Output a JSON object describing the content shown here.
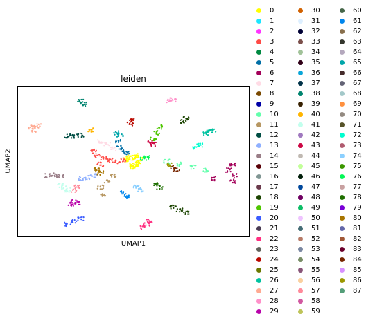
{
  "chart_data": {
    "type": "scatter",
    "title": "leiden",
    "xlabel": "UMAP1",
    "ylabel": "UMAP2",
    "grid": false,
    "ticks": false,
    "legend_placement": "right-outside",
    "legend": [
      {
        "label": "0",
        "color": "#ffff00"
      },
      {
        "label": "1",
        "color": "#1ce6ff"
      },
      {
        "label": "2",
        "color": "#ff34ff"
      },
      {
        "label": "3",
        "color": "#ff4a46"
      },
      {
        "label": "4",
        "color": "#008941"
      },
      {
        "label": "5",
        "color": "#006fa6"
      },
      {
        "label": "6",
        "color": "#a30059"
      },
      {
        "label": "7",
        "color": "#ffdbe5"
      },
      {
        "label": "8",
        "color": "#7a4900"
      },
      {
        "label": "9",
        "color": "#0000a6"
      },
      {
        "label": "10",
        "color": "#63ffac"
      },
      {
        "label": "11",
        "color": "#b79762"
      },
      {
        "label": "12",
        "color": "#004d43"
      },
      {
        "label": "13",
        "color": "#8fb0ff"
      },
      {
        "label": "14",
        "color": "#997d87"
      },
      {
        "label": "15",
        "color": "#5a0007"
      },
      {
        "label": "16",
        "color": "#809693"
      },
      {
        "label": "17",
        "color": "#6a3a4c"
      },
      {
        "label": "18",
        "color": "#1b4400"
      },
      {
        "label": "19",
        "color": "#4fc601"
      },
      {
        "label": "20",
        "color": "#3b5dff"
      },
      {
        "label": "21",
        "color": "#4a3b53"
      },
      {
        "label": "22",
        "color": "#ff2f80"
      },
      {
        "label": "23",
        "color": "#61615a"
      },
      {
        "label": "24",
        "color": "#ba0900"
      },
      {
        "label": "25",
        "color": "#6b7900"
      },
      {
        "label": "26",
        "color": "#00c2a0"
      },
      {
        "label": "27",
        "color": "#ffaa92"
      },
      {
        "label": "28",
        "color": "#ff90c9"
      },
      {
        "label": "29",
        "color": "#b903aa"
      },
      {
        "label": "30",
        "color": "#d16100"
      },
      {
        "label": "31",
        "color": "#ddefff"
      },
      {
        "label": "32",
        "color": "#000035"
      },
      {
        "label": "33",
        "color": "#7b4f4b"
      },
      {
        "label": "34",
        "color": "#a1c299"
      },
      {
        "label": "35",
        "color": "#300018"
      },
      {
        "label": "36",
        "color": "#0aa6d8"
      },
      {
        "label": "37",
        "color": "#013349"
      },
      {
        "label": "38",
        "color": "#00846f"
      },
      {
        "label": "39",
        "color": "#372101"
      },
      {
        "label": "40",
        "color": "#ffb500"
      },
      {
        "label": "41",
        "color": "#c2ffed"
      },
      {
        "label": "42",
        "color": "#a079bf"
      },
      {
        "label": "43",
        "color": "#cc0744"
      },
      {
        "label": "44",
        "color": "#c0b9b2"
      },
      {
        "label": "45",
        "color": "#c2ff99"
      },
      {
        "label": "46",
        "color": "#001e09"
      },
      {
        "label": "47",
        "color": "#00489c"
      },
      {
        "label": "48",
        "color": "#6f0062"
      },
      {
        "label": "49",
        "color": "#0cbd66"
      },
      {
        "label": "50",
        "color": "#eec3ff"
      },
      {
        "label": "51",
        "color": "#456d75"
      },
      {
        "label": "52",
        "color": "#b77b68"
      },
      {
        "label": "53",
        "color": "#7a87a1"
      },
      {
        "label": "54",
        "color": "#788d66"
      },
      {
        "label": "55",
        "color": "#885578"
      },
      {
        "label": "56",
        "color": "#fad09f"
      },
      {
        "label": "57",
        "color": "#ff8a9a"
      },
      {
        "label": "58",
        "color": "#d157a0"
      },
      {
        "label": "59",
        "color": "#bec459"
      },
      {
        "label": "60",
        "color": "#456648"
      },
      {
        "label": "61",
        "color": "#0086ed"
      },
      {
        "label": "62",
        "color": "#886f4c"
      },
      {
        "label": "63",
        "color": "#34362d"
      },
      {
        "label": "64",
        "color": "#b4a8bd"
      },
      {
        "label": "65",
        "color": "#00a6aa"
      },
      {
        "label": "66",
        "color": "#452c2c"
      },
      {
        "label": "67",
        "color": "#636375"
      },
      {
        "label": "68",
        "color": "#a3c8c9"
      },
      {
        "label": "69",
        "color": "#ff913f"
      },
      {
        "label": "70",
        "color": "#938a81"
      },
      {
        "label": "71",
        "color": "#575329"
      },
      {
        "label": "72",
        "color": "#00fecf"
      },
      {
        "label": "73",
        "color": "#b05b6f"
      },
      {
        "label": "74",
        "color": "#8cd0ff"
      },
      {
        "label": "75",
        "color": "#3b9700"
      },
      {
        "label": "76",
        "color": "#04f757"
      },
      {
        "label": "77",
        "color": "#c8a1a1"
      },
      {
        "label": "78",
        "color": "#1e6e00"
      },
      {
        "label": "79",
        "color": "#7900d7"
      },
      {
        "label": "80",
        "color": "#a77500"
      },
      {
        "label": "81",
        "color": "#6367a9"
      },
      {
        "label": "82",
        "color": "#a05837"
      },
      {
        "label": "83",
        "color": "#6b002c"
      },
      {
        "label": "84",
        "color": "#772600"
      },
      {
        "label": "85",
        "color": "#d790ff"
      },
      {
        "label": "86",
        "color": "#9b9700"
      },
      {
        "label": "87",
        "color": "#549e79"
      }
    ],
    "series": [
      {
        "cluster": "0",
        "points": [
          [
            0.02,
            0.05
          ],
          [
            -0.05,
            0.08
          ],
          [
            0.08,
            -0.02
          ],
          [
            -0.03,
            -0.06
          ],
          [
            0.06,
            0.1
          ],
          [
            0.1,
            0.04
          ],
          [
            -0.08,
            0.0
          ],
          [
            0.0,
            -0.1
          ],
          [
            0.04,
            -0.05
          ],
          [
            -0.1,
            0.05
          ]
        ]
      },
      {
        "cluster": "3",
        "points": [
          [
            -0.55,
            0.1
          ],
          [
            -0.45,
            0.05
          ],
          [
            -0.35,
            0.02
          ],
          [
            -0.25,
            0.0
          ],
          [
            -0.15,
            0.03
          ],
          [
            -0.6,
            0.18
          ],
          [
            -0.5,
            -0.05
          ]
        ]
      },
      {
        "cluster": "5",
        "points": [
          [
            -0.2,
            0.25
          ],
          [
            -0.15,
            0.2
          ],
          [
            -0.1,
            0.15
          ],
          [
            -0.22,
            0.35
          ]
        ]
      },
      {
        "cluster": "6",
        "points": [
          [
            1.5,
            -0.05
          ],
          [
            1.45,
            -0.15
          ],
          [
            1.55,
            -0.25
          ],
          [
            1.5,
            -0.35
          ],
          [
            1.2,
            -0.3
          ]
        ]
      },
      {
        "cluster": "7",
        "points": [
          [
            -0.4,
            0.3
          ],
          [
            -0.3,
            0.22
          ],
          [
            -0.5,
            0.35
          ]
        ]
      },
      {
        "cluster": "10",
        "points": [
          [
            0.5,
            0.0
          ],
          [
            0.7,
            -0.05
          ],
          [
            0.9,
            -0.1
          ],
          [
            1.1,
            -0.15
          ]
        ]
      },
      {
        "cluster": "11",
        "points": [
          [
            -0.3,
            -0.25
          ],
          [
            -0.4,
            -0.35
          ],
          [
            -0.5,
            -0.45
          ],
          [
            -0.45,
            -0.6
          ]
        ]
      },
      {
        "cluster": "12",
        "points": [
          [
            -1.0,
            0.45
          ],
          [
            -0.9,
            0.44
          ],
          [
            -0.8,
            0.46
          ]
        ]
      },
      {
        "cluster": "13",
        "points": [
          [
            -0.8,
            -0.3
          ],
          [
            -0.7,
            -0.28
          ],
          [
            -0.6,
            -0.25
          ]
        ]
      },
      {
        "cluster": "14",
        "points": [
          [
            -1.3,
            -0.25
          ],
          [
            -1.2,
            -0.24
          ],
          [
            -1.1,
            -0.26
          ]
        ]
      },
      {
        "cluster": "18",
        "points": [
          [
            0.7,
            -0.85
          ],
          [
            0.8,
            -0.9
          ],
          [
            0.6,
            -0.8
          ],
          [
            0.75,
            0.7
          ],
          [
            0.8,
            0.75
          ]
        ]
      },
      {
        "cluster": "19",
        "points": [
          [
            0.35,
            0.5
          ],
          [
            0.4,
            0.6
          ],
          [
            0.3,
            0.4
          ]
        ]
      },
      {
        "cluster": "20",
        "points": [
          [
            -0.9,
            -1.05
          ],
          [
            -1.0,
            -1.1
          ],
          [
            -0.8,
            -1.0
          ]
        ]
      },
      {
        "cluster": "22",
        "points": [
          [
            0.2,
            -1.1
          ],
          [
            0.15,
            -1.15
          ],
          [
            0.25,
            -1.05
          ]
        ]
      },
      {
        "cluster": "24",
        "points": [
          [
            -0.05,
            0.65
          ],
          [
            -0.02,
            0.72
          ]
        ]
      },
      {
        "cluster": "26",
        "points": [
          [
            1.1,
            0.5
          ],
          [
            1.15,
            0.52
          ],
          [
            1.2,
            0.55
          ]
        ]
      },
      {
        "cluster": "27",
        "points": [
          [
            -1.55,
            0.6
          ],
          [
            -1.5,
            0.55
          ],
          [
            -1.45,
            0.62
          ]
        ]
      },
      {
        "cluster": "28",
        "points": [
          [
            0.55,
            1.05
          ],
          [
            0.6,
            1.08
          ]
        ]
      },
      {
        "cluster": "29",
        "points": [
          [
            -0.95,
            -0.75
          ],
          [
            -0.9,
            -0.7
          ],
          [
            -0.85,
            -0.72
          ]
        ]
      },
      {
        "cluster": "38",
        "points": [
          [
            -0.8,
            1.05
          ],
          [
            -0.75,
            1.0
          ]
        ]
      },
      {
        "cluster": "40",
        "points": [
          [
            -0.65,
            0.55
          ]
        ]
      },
      {
        "cluster": "41",
        "points": [
          [
            -1.05,
            -0.45
          ],
          [
            -1.0,
            -0.5
          ],
          [
            -1.1,
            -0.42
          ]
        ]
      },
      {
        "cluster": "43",
        "points": [
          [
            0.3,
            0.3
          ],
          [
            0.25,
            0.35
          ]
        ]
      },
      {
        "cluster": "57",
        "points": [
          [
            -0.85,
            -0.45
          ],
          [
            -0.9,
            -0.5
          ]
        ]
      },
      {
        "cluster": "61",
        "points": [
          [
            -0.15,
            -0.55
          ],
          [
            -0.1,
            -0.6
          ]
        ]
      },
      {
        "cluster": "65",
        "points": [
          [
            -0.25,
            0.5
          ],
          [
            -0.2,
            0.45
          ]
        ]
      },
      {
        "cluster": "72",
        "points": [
          [
            0.95,
            0.25
          ],
          [
            1.0,
            0.28
          ]
        ]
      },
      {
        "cluster": "74",
        "points": [
          [
            0.05,
            -0.45
          ],
          [
            0.1,
            -0.5
          ]
        ]
      },
      {
        "cluster": "76",
        "points": [
          [
            0.15,
            0.05
          ],
          [
            0.2,
            0.08
          ]
        ]
      },
      {
        "cluster": "78",
        "points": [
          [
            0.35,
            -0.4
          ],
          [
            0.4,
            -0.45
          ]
        ]
      },
      {
        "cluster": "80",
        "points": [
          [
            -0.55,
            -0.15
          ],
          [
            -0.5,
            -0.2
          ]
        ]
      },
      {
        "cluster": "84",
        "points": [
          [
            0.6,
            -0.1
          ],
          [
            0.65,
            -0.15
          ]
        ]
      },
      {
        "cluster": "86",
        "points": [
          [
            0.55,
            -0.05
          ]
        ]
      }
    ]
  }
}
